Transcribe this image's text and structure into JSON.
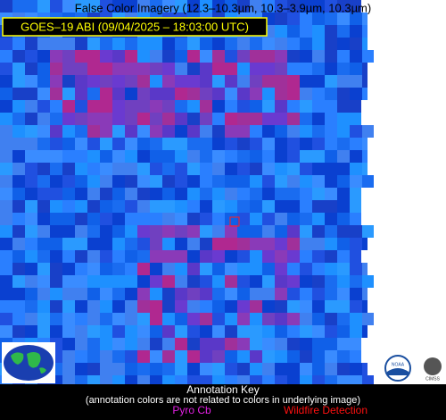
{
  "header": {
    "title": "False Color Imagery (12.3–10.3µm, 10.3–3.9µm, 10.3µm)",
    "subtitle": "GOES–19 ABI (09/04/2025 – 18:03:00 UTC)"
  },
  "logos": {
    "noaa": "NOAA",
    "cimss": "CIMSS"
  },
  "annotation_key": {
    "title": "Annotation Key",
    "note": "(annotation colors are not related to colors in underlying image)",
    "items": [
      "Pyro Cb",
      "Wildfire Detection"
    ]
  }
}
